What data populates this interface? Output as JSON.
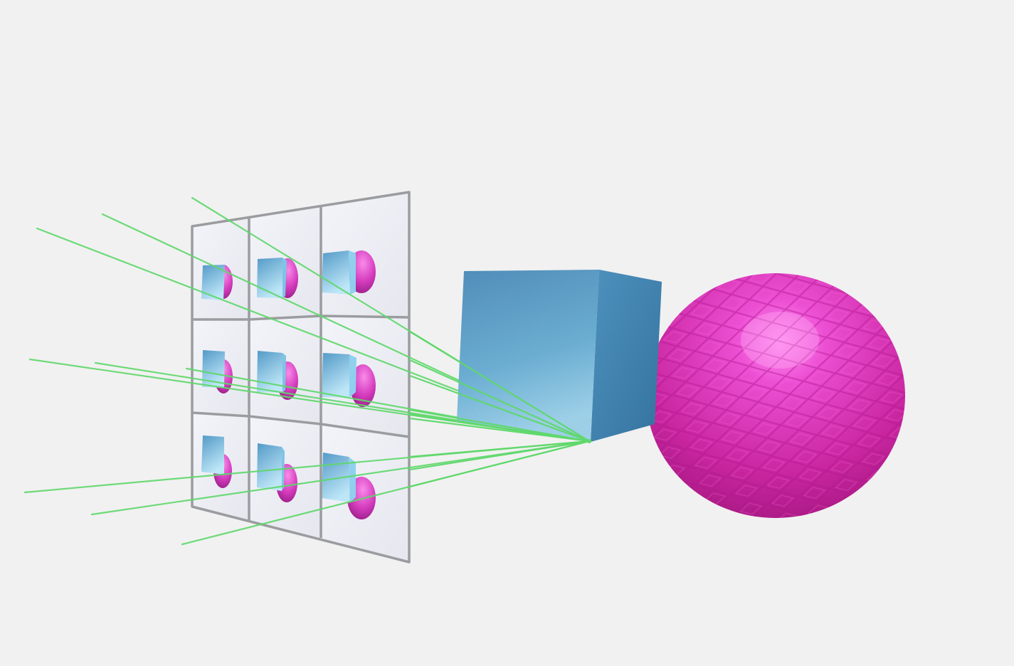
{
  "scene": {
    "background_color": "#f1f1f1",
    "grid": {
      "rows": 3,
      "columns": 3,
      "frame_color": "#9a9c9f",
      "cell_color": "#eeeff5"
    },
    "objects": {
      "cube": {
        "icon": "textured-blue-cube",
        "color": "#4f98c4"
      },
      "sphere": {
        "icon": "textured-magenta-sphere",
        "color": "#e43fcb"
      }
    },
    "rays": {
      "color": "#5fd86b",
      "per_cell": 1,
      "pass_through_grid": true
    },
    "thumbnails": {
      "content": "cube-in-front-of-sphere",
      "count": 9
    }
  }
}
